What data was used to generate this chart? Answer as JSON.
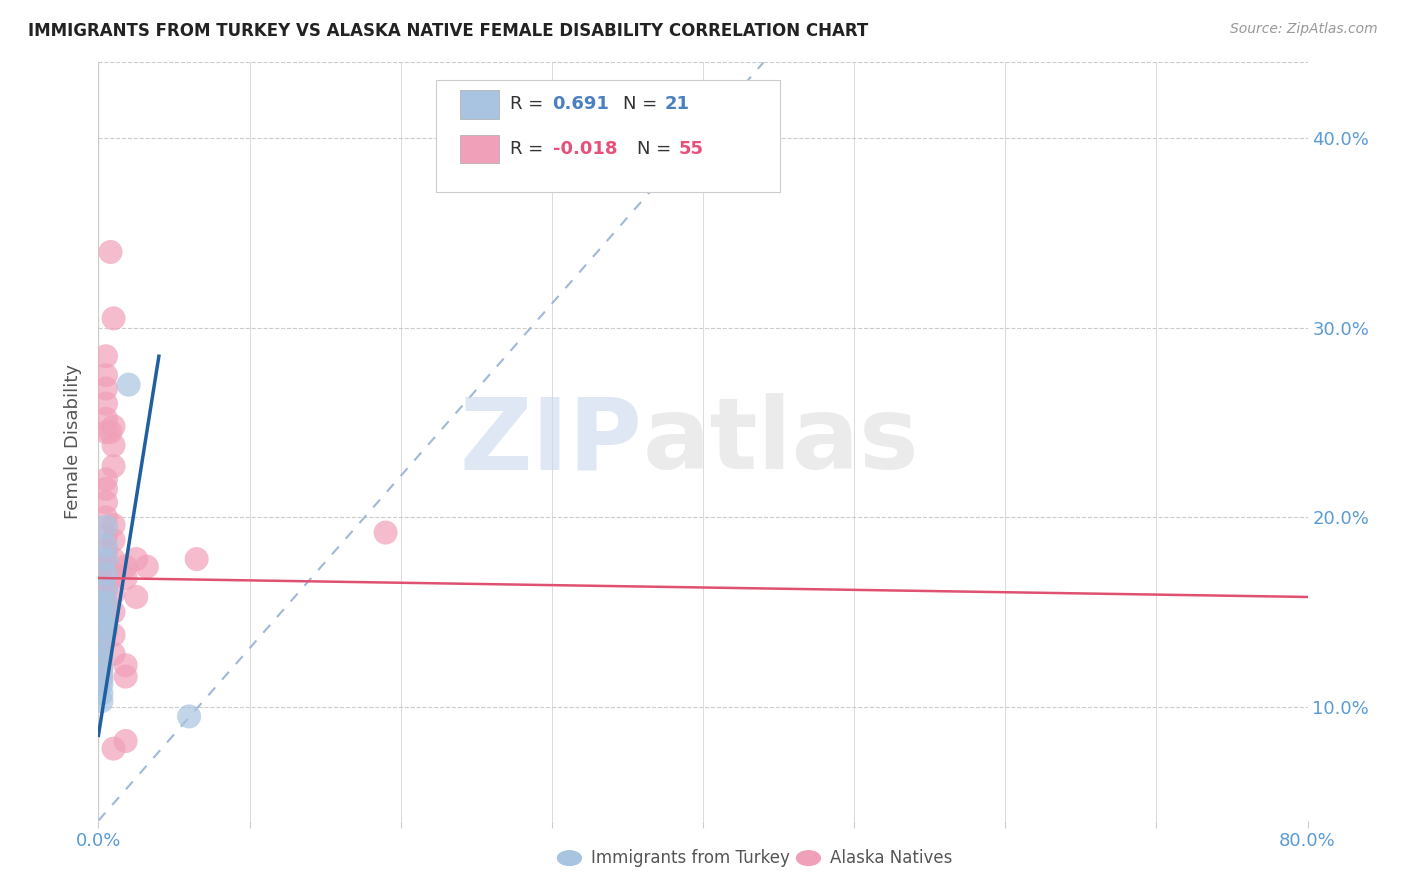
{
  "title": "IMMIGRANTS FROM TURKEY VS ALASKA NATIVE FEMALE DISABILITY CORRELATION CHART",
  "source": "Source: ZipAtlas.com",
  "ylabel": "Female Disability",
  "watermark": "ZIPatlas",
  "xlim": [
    0.0,
    0.8
  ],
  "ylim": [
    0.04,
    0.44
  ],
  "yticks": [
    0.1,
    0.2,
    0.3,
    0.4
  ],
  "ytick_labels": [
    "10.0%",
    "20.0%",
    "30.0%",
    "40.0%"
  ],
  "xticks": [
    0.0,
    0.1,
    0.2,
    0.3,
    0.4,
    0.5,
    0.6,
    0.7,
    0.8
  ],
  "xtick_labels": [
    "0.0%",
    "",
    "",
    "",
    "",
    "",
    "",
    "",
    "80.0%"
  ],
  "blue_color": "#a8c4e0",
  "pink_color": "#f0a0b8",
  "blue_line_color": "#2060a0",
  "pink_line_color": "#e05070",
  "dashed_line_color": "#a0b8d8",
  "blue_scatter": [
    [
      0.002,
      0.155
    ],
    [
      0.002,
      0.148
    ],
    [
      0.002,
      0.143
    ],
    [
      0.002,
      0.138
    ],
    [
      0.002,
      0.132
    ],
    [
      0.002,
      0.127
    ],
    [
      0.002,
      0.122
    ],
    [
      0.002,
      0.117
    ],
    [
      0.002,
      0.112
    ],
    [
      0.002,
      0.107
    ],
    [
      0.002,
      0.103
    ],
    [
      0.005,
      0.195
    ],
    [
      0.005,
      0.185
    ],
    [
      0.005,
      0.178
    ],
    [
      0.005,
      0.17
    ],
    [
      0.005,
      0.162
    ],
    [
      0.005,
      0.155
    ],
    [
      0.005,
      0.148
    ],
    [
      0.005,
      0.142
    ],
    [
      0.02,
      0.27
    ],
    [
      0.06,
      0.095
    ]
  ],
  "pink_scatter": [
    [
      0.002,
      0.175
    ],
    [
      0.002,
      0.168
    ],
    [
      0.002,
      0.162
    ],
    [
      0.002,
      0.156
    ],
    [
      0.002,
      0.15
    ],
    [
      0.002,
      0.145
    ],
    [
      0.002,
      0.14
    ],
    [
      0.002,
      0.135
    ],
    [
      0.002,
      0.13
    ],
    [
      0.002,
      0.125
    ],
    [
      0.002,
      0.12
    ],
    [
      0.002,
      0.115
    ],
    [
      0.005,
      0.285
    ],
    [
      0.005,
      0.275
    ],
    [
      0.005,
      0.268
    ],
    [
      0.005,
      0.26
    ],
    [
      0.005,
      0.252
    ],
    [
      0.005,
      0.245
    ],
    [
      0.005,
      0.22
    ],
    [
      0.005,
      0.215
    ],
    [
      0.005,
      0.208
    ],
    [
      0.005,
      0.2
    ],
    [
      0.005,
      0.19
    ],
    [
      0.005,
      0.182
    ],
    [
      0.005,
      0.175
    ],
    [
      0.005,
      0.162
    ],
    [
      0.005,
      0.155
    ],
    [
      0.005,
      0.148
    ],
    [
      0.005,
      0.14
    ],
    [
      0.008,
      0.34
    ],
    [
      0.008,
      0.245
    ],
    [
      0.01,
      0.305
    ],
    [
      0.01,
      0.248
    ],
    [
      0.01,
      0.238
    ],
    [
      0.01,
      0.227
    ],
    [
      0.01,
      0.196
    ],
    [
      0.01,
      0.188
    ],
    [
      0.01,
      0.178
    ],
    [
      0.01,
      0.17
    ],
    [
      0.01,
      0.16
    ],
    [
      0.01,
      0.15
    ],
    [
      0.01,
      0.138
    ],
    [
      0.01,
      0.128
    ],
    [
      0.01,
      0.078
    ],
    [
      0.018,
      0.174
    ],
    [
      0.018,
      0.168
    ],
    [
      0.018,
      0.122
    ],
    [
      0.018,
      0.116
    ],
    [
      0.018,
      0.082
    ],
    [
      0.025,
      0.178
    ],
    [
      0.025,
      0.158
    ],
    [
      0.032,
      0.174
    ],
    [
      0.065,
      0.178
    ],
    [
      0.19,
      0.192
    ]
  ],
  "blue_trend_x": [
    0.0,
    0.04
  ],
  "blue_trend_y": [
    0.085,
    0.285
  ],
  "pink_trend_x": [
    0.0,
    0.8
  ],
  "pink_trend_y": [
    0.168,
    0.158
  ],
  "diag_line_x": [
    0.0,
    0.44
  ],
  "diag_line_y": [
    0.04,
    0.44
  ]
}
